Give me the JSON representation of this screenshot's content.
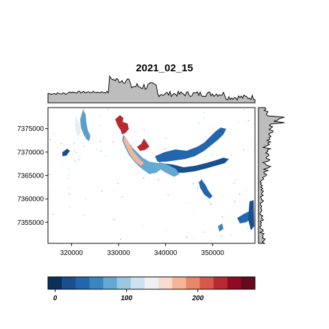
{
  "chart_data": {
    "type": "heatmap",
    "title": "2021_02_15",
    "xlabel": "",
    "ylabel": "",
    "x_ticks": [
      320000,
      330000,
      340000,
      350000
    ],
    "x_tick_labels": [
      "320000",
      "330000",
      "340000",
      "350000"
    ],
    "y_ticks": [
      7355000,
      7360000,
      7365000,
      7370000,
      7375000
    ],
    "y_tick_labels": [
      "7355000",
      "7360000",
      "7365000",
      "7370000",
      "7375000"
    ],
    "xlim": [
      315000,
      359000
    ],
    "ylim": [
      7350500,
      7379500
    ],
    "grid": false,
    "marginal_top": true,
    "marginal_right": true,
    "colorbar": {
      "range": [
        -10,
        280
      ],
      "ticks": [
        0,
        100,
        200
      ],
      "tick_labels": [
        "0",
        "100",
        "200"
      ],
      "colors": [
        "#0b2f5e",
        "#174f8f",
        "#2466ad",
        "#3b86c0",
        "#65a8d2",
        "#9bc8e1",
        "#cde2ef",
        "#eef0f2",
        "#f7dcd0",
        "#f6b596",
        "#e78767",
        "#d5594a",
        "#b72a31",
        "#8f0a23",
        "#650a1f"
      ]
    }
  }
}
